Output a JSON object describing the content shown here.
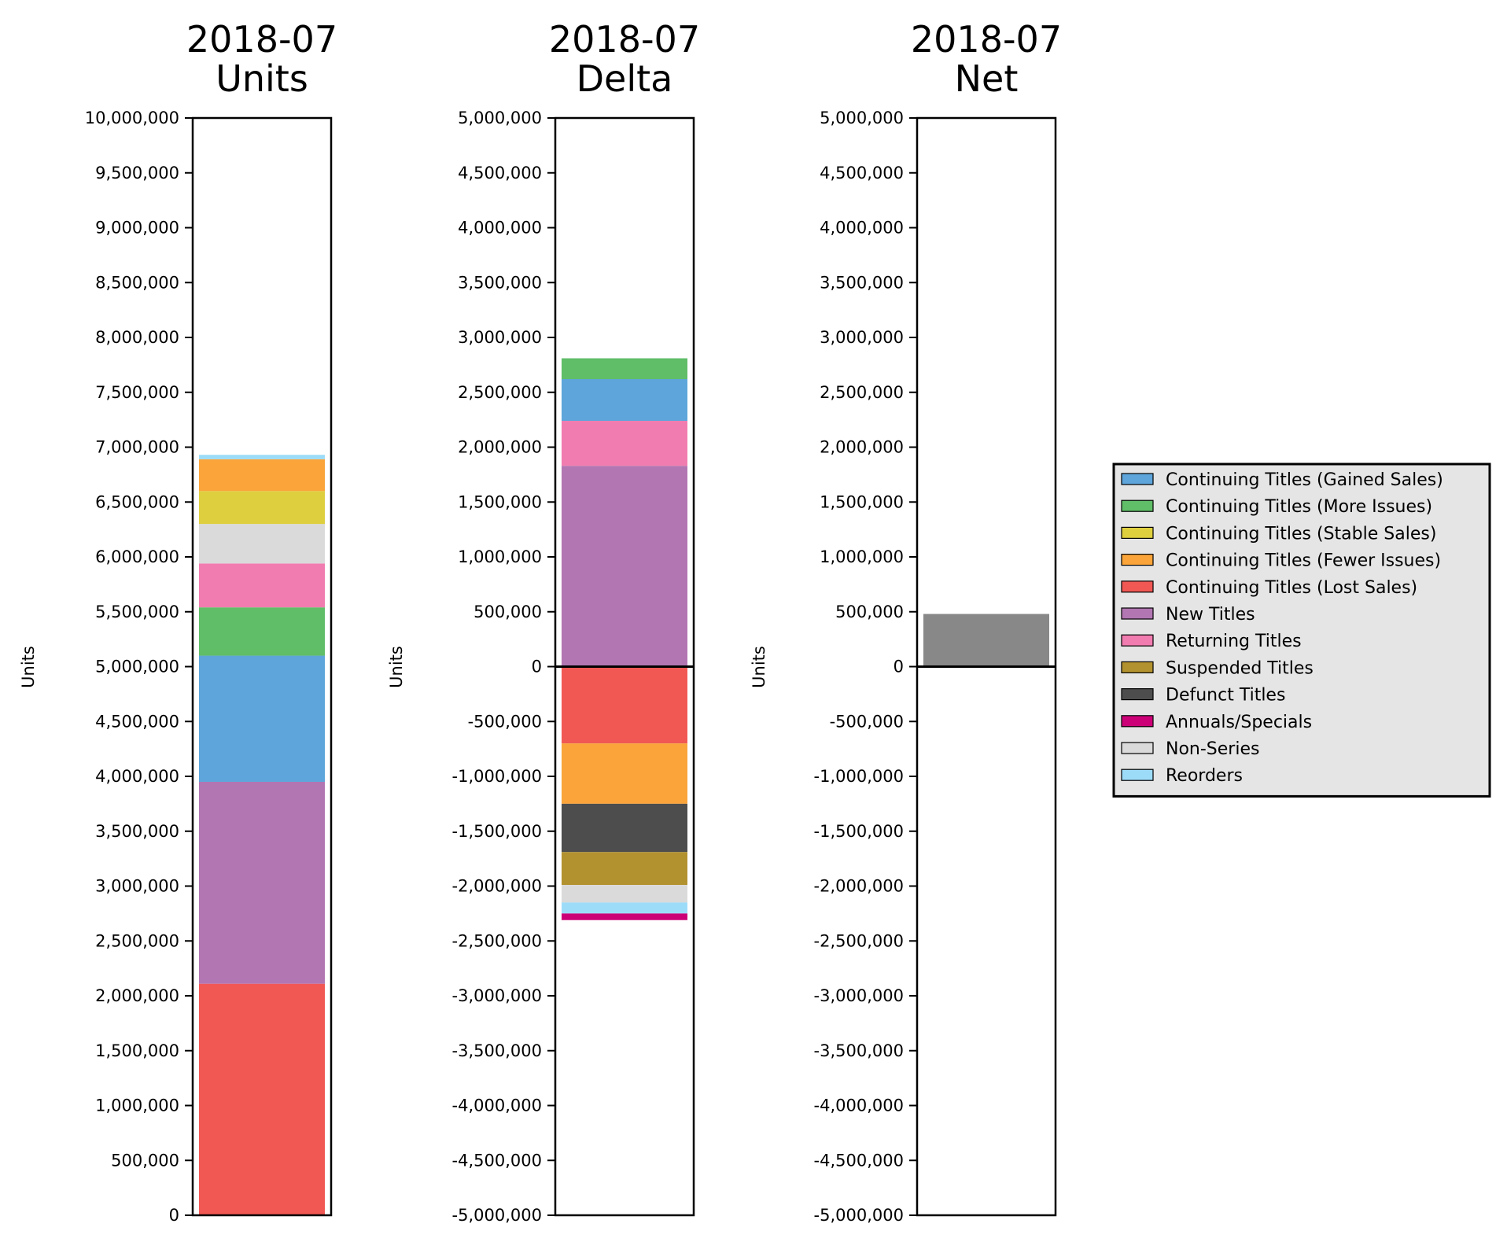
{
  "chart_data": [
    {
      "type": "bar",
      "stacked": true,
      "title": [
        "2018-07",
        "Units"
      ],
      "ylabel": "Units",
      "ylim": [
        0,
        10000000
      ],
      "yticks": [
        0,
        500000,
        1000000,
        1500000,
        2000000,
        2500000,
        3000000,
        3500000,
        4000000,
        4500000,
        5000000,
        5500000,
        6000000,
        6500000,
        7000000,
        7500000,
        8000000,
        8500000,
        9000000,
        9500000,
        10000000
      ],
      "zero_line": false,
      "segments": [
        {
          "category": "Continuing Titles (Lost Sales)",
          "start": 0,
          "end": 2110000
        },
        {
          "category": "New Titles",
          "start": 2110000,
          "end": 3950000
        },
        {
          "category": "Continuing Titles (Gained Sales)",
          "start": 3950000,
          "end": 5100000
        },
        {
          "category": "Continuing Titles (More Issues)",
          "start": 5100000,
          "end": 5540000
        },
        {
          "category": "Returning Titles",
          "start": 5540000,
          "end": 5940000
        },
        {
          "category": "Non-Series",
          "start": 5940000,
          "end": 6300000
        },
        {
          "category": "Continuing Titles (Stable Sales)",
          "start": 6300000,
          "end": 6600000
        },
        {
          "category": "Continuing Titles (Fewer Issues)",
          "start": 6600000,
          "end": 6890000
        },
        {
          "category": "Reorders",
          "start": 6890000,
          "end": 6930000
        }
      ]
    },
    {
      "type": "bar",
      "stacked": true,
      "title": [
        "2018-07",
        "Delta"
      ],
      "ylabel": "Units",
      "ylim": [
        -5000000,
        5000000
      ],
      "yticks": [
        -5000000,
        -4500000,
        -4000000,
        -3500000,
        -3000000,
        -2500000,
        -2000000,
        -1500000,
        -1000000,
        -500000,
        0,
        500000,
        1000000,
        1500000,
        2000000,
        2500000,
        3000000,
        3500000,
        4000000,
        4500000,
        5000000
      ],
      "zero_line": true,
      "segments": [
        {
          "category": "New Titles",
          "start": 0,
          "end": 1830000
        },
        {
          "category": "Returning Titles",
          "start": 1830000,
          "end": 2240000
        },
        {
          "category": "Continuing Titles (Gained Sales)",
          "start": 2240000,
          "end": 2620000
        },
        {
          "category": "Continuing Titles (More Issues)",
          "start": 2620000,
          "end": 2810000
        },
        {
          "category": "Continuing Titles (Lost Sales)",
          "start": 0,
          "end": -700000
        },
        {
          "category": "Continuing Titles (Fewer Issues)",
          "start": -700000,
          "end": -1250000
        },
        {
          "category": "Defunct Titles",
          "start": -1250000,
          "end": -1690000
        },
        {
          "category": "Suspended Titles",
          "start": -1690000,
          "end": -1990000
        },
        {
          "category": "Non-Series",
          "start": -1990000,
          "end": -2150000
        },
        {
          "category": "Reorders",
          "start": -2150000,
          "end": -2250000
        },
        {
          "category": "Annuals/Specials",
          "start": -2250000,
          "end": -2310000
        }
      ]
    },
    {
      "type": "bar",
      "stacked": false,
      "title": [
        "2018-07",
        "Net"
      ],
      "ylabel": "Units",
      "ylim": [
        -5000000,
        5000000
      ],
      "yticks": [
        -5000000,
        -4500000,
        -4000000,
        -3500000,
        -3000000,
        -2500000,
        -2000000,
        -1500000,
        -1000000,
        -500000,
        0,
        500000,
        1000000,
        1500000,
        2000000,
        2500000,
        3000000,
        3500000,
        4000000,
        4500000,
        5000000
      ],
      "zero_line": true,
      "segments": [
        {
          "category": "Net",
          "start": 0,
          "end": 480000
        }
      ]
    }
  ],
  "legend": {
    "placement": "right",
    "entries": [
      {
        "label": "Continuing Titles (Gained Sales)",
        "color": "#5da5da"
      },
      {
        "label": "Continuing Titles (More Issues)",
        "color": "#60bd68"
      },
      {
        "label": "Continuing Titles (Stable Sales)",
        "color": "#decf3f"
      },
      {
        "label": "Continuing Titles (Fewer Issues)",
        "color": "#faa43a"
      },
      {
        "label": "Continuing Titles (Lost Sales)",
        "color": "#f15854"
      },
      {
        "label": "New Titles",
        "color": "#b276b2"
      },
      {
        "label": "Returning Titles",
        "color": "#f17cb0"
      },
      {
        "label": "Suspended Titles",
        "color": "#b2912f"
      },
      {
        "label": "Defunct Titles",
        "color": "#4d4d4d"
      },
      {
        "label": "Annuals/Specials",
        "color": "#cc0077"
      },
      {
        "label": "Non-Series",
        "color": "#dadada"
      },
      {
        "label": "Reorders",
        "color": "#9ddcf9"
      }
    ]
  },
  "colors": {
    "Net": "#888888",
    "legend_background": "#e5e5e5"
  }
}
